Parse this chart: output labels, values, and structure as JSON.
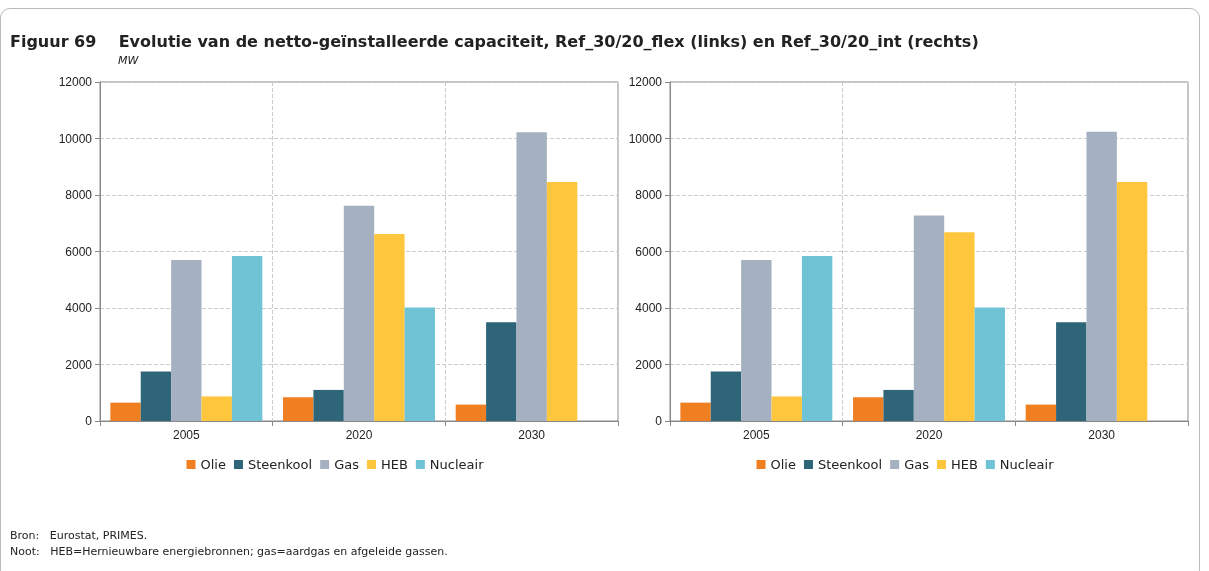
{
  "chart_data": [
    {
      "type": "bar",
      "title": "Figuur 69    Evolutie van de netto-geïnstalleerde capaciteit, Ref_30/20_flex (links) en Ref_30/20_int (rechts)",
      "subtitle": "MW",
      "annotations": [
        "Bron:   Eurostat, PRIMES.",
        "Noot:   HEB=Hernieuwbare energiebronnen; gas=aardgas en afgeleide gassen."
      ],
      "categories": [
        "2005",
        "2020",
        "2030"
      ],
      "series": [
        {
          "name": "Olie",
          "color": "#f07f22",
          "values": [
            650,
            840,
            580
          ]
        },
        {
          "name": "Steenkool",
          "color": "#2e6579",
          "values": [
            1750,
            1100,
            3500
          ]
        },
        {
          "name": "Gas",
          "color": "#a5b1c0",
          "values": [
            5700,
            7620,
            10220
          ]
        },
        {
          "name": "HEB",
          "color": "#fec63d",
          "values": [
            870,
            6620,
            8460
          ]
        },
        {
          "name": "Nucleair",
          "color": "#6ec4d4",
          "values": [
            5840,
            4020,
            0
          ]
        }
      ],
      "ylim": [
        0,
        12000
      ],
      "yticks": [
        0,
        2000,
        4000,
        6000,
        8000,
        10000,
        12000
      ],
      "grid": true,
      "legend": "bottom"
    },
    {
      "type": "bar",
      "categories": [
        "2005",
        "2020",
        "2030"
      ],
      "series": [
        {
          "name": "Olie",
          "color": "#f07f22",
          "values": [
            650,
            840,
            580
          ]
        },
        {
          "name": "Steenkool",
          "color": "#2e6579",
          "values": [
            1750,
            1100,
            3500
          ]
        },
        {
          "name": "Gas",
          "color": "#a5b1c0",
          "values": [
            5700,
            7270,
            10240
          ]
        },
        {
          "name": "HEB",
          "color": "#fec63d",
          "values": [
            870,
            6680,
            8460
          ]
        },
        {
          "name": "Nucleair",
          "color": "#6ec4d4",
          "values": [
            5840,
            4020,
            0
          ]
        }
      ],
      "ylim": [
        0,
        12000
      ],
      "yticks": [
        0,
        2000,
        4000,
        6000,
        8000,
        10000,
        12000
      ],
      "grid": true,
      "legend": "bottom"
    }
  ]
}
